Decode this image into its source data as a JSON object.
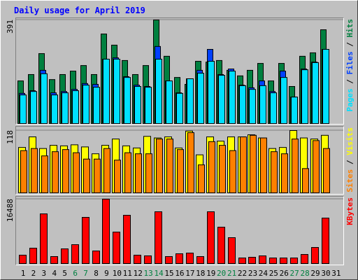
{
  "chart_data": [
    {
      "type": "bar",
      "title": "Daily usage for April 2019",
      "categories": [
        "1",
        "2",
        "3",
        "4",
        "5",
        "6",
        "7",
        "8",
        "9",
        "10",
        "11",
        "12",
        "13",
        "14",
        "15",
        "16",
        "17",
        "18",
        "19",
        "20",
        "21",
        "22",
        "23",
        "24",
        "25",
        "26",
        "27",
        "28",
        "29",
        "30",
        "31"
      ],
      "category_colors": [
        "#000000",
        "#000000",
        "#000000",
        "#000000",
        "#000000",
        "#008040",
        "#008040",
        "#000000",
        "#000000",
        "#000000",
        "#000000",
        "#000000",
        "#008040",
        "#008040",
        "#000000",
        "#000000",
        "#000000",
        "#000000",
        "#000000",
        "#008040",
        "#008040",
        "#000000",
        "#000000",
        "#000000",
        "#000000",
        "#000000",
        "#008040",
        "#008040",
        "#000000",
        "#000000",
        "#000000"
      ],
      "legend_separator": " / ",
      "ylim": [
        0,
        391
      ],
      "yticks": [
        391
      ],
      "series": [
        {
          "name": "Hits",
          "color": "#008040",
          "values": [
            161,
            185,
            264,
            166,
            185,
            198,
            219,
            185,
            338,
            296,
            238,
            185,
            219,
            391,
            254,
            174,
            148,
            235,
            232,
            238,
            201,
            180,
            201,
            227,
            161,
            227,
            140,
            254,
            267,
            354,
            null
          ]
        },
        {
          "name": "Files",
          "color": "#0040ff",
          "values": [
            114,
            124,
            201,
            116,
            121,
            129,
            151,
            148,
            243,
            248,
            177,
            145,
            140,
            291,
            161,
            116,
            169,
            201,
            280,
            185,
            206,
            145,
            135,
            161,
            121,
            198,
            100,
            206,
            232,
            280,
            null
          ]
        },
        {
          "name": "Pages",
          "color": "#00e0ff",
          "values": [
            108,
            121,
            188,
            108,
            116,
            124,
            145,
            137,
            243,
            243,
            174,
            140,
            137,
            243,
            161,
            114,
            169,
            190,
            235,
            182,
            198,
            143,
            129,
            143,
            116,
            174,
            100,
            203,
            230,
            280,
            null
          ]
        }
      ]
    },
    {
      "type": "bar",
      "legend_separator": " / ",
      "ylim": [
        0,
        118
      ],
      "yticks": [
        118
      ],
      "series": [
        {
          "name": "Visits",
          "color": "#ffff00",
          "values": [
            86,
            106,
            84,
            90,
            89,
            91,
            87,
            74,
            90,
            102,
            89,
            85,
            107,
            104,
            106,
            85,
            117,
            72,
            106,
            98,
            106,
            106,
            110,
            104,
            84,
            86,
            118,
            104,
            102,
            109,
            null
          ]
        },
        {
          "name": "Sites",
          "color": "#ff8000",
          "values": [
            80,
            84,
            70,
            78,
            82,
            76,
            64,
            64,
            84,
            62,
            76,
            74,
            74,
            102,
            102,
            82,
            114,
            53,
            97,
            90,
            80,
            106,
            109,
            104,
            78,
            74,
            102,
            46,
            99,
            84,
            null
          ]
        }
      ]
    },
    {
      "type": "bar",
      "ylim": [
        0,
        16488
      ],
      "yticks": [
        16488
      ],
      "series": [
        {
          "name": "KBytes",
          "color": "#ff0000",
          "values": [
            2151,
            3943,
            12724,
            1792,
            3764,
            4839,
            11828,
            3226,
            16488,
            8065,
            12366,
            2151,
            1971,
            13262,
            1792,
            2509,
            2688,
            1792,
            13262,
            9319,
            6631,
            1434,
            1613,
            1971,
            1434,
            1434,
            1434,
            2330,
            4122,
            11649,
            null
          ]
        }
      ]
    }
  ]
}
